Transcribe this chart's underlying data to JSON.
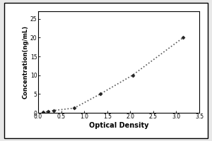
{
  "x": [
    0.1,
    0.212,
    0.338,
    0.781,
    1.35,
    2.05,
    3.15
  ],
  "y": [
    0.156,
    0.312,
    0.625,
    1.25,
    5.0,
    10.0,
    20.0
  ],
  "xlabel": "Optical Density",
  "ylabel": "Concentration(ng/mL)",
  "xlim": [
    0,
    3.5
  ],
  "ylim": [
    0,
    27
  ],
  "xticks": [
    0,
    0.5,
    1.0,
    1.5,
    2.0,
    2.5,
    3.0,
    3.5
  ],
  "yticks": [
    0,
    5,
    10,
    15,
    20,
    25
  ],
  "line_color": "#555555",
  "marker_color": "#222222",
  "marker": "D",
  "marker_size": 2.5,
  "line_style": ":",
  "line_width": 1.2,
  "background_color": "#ffffff",
  "outer_bg": "#e8e8e8",
  "axis_fontsize": 6.5,
  "tick_fontsize": 5.5,
  "xlabel_fontsize": 7,
  "ylabel_fontsize": 6
}
